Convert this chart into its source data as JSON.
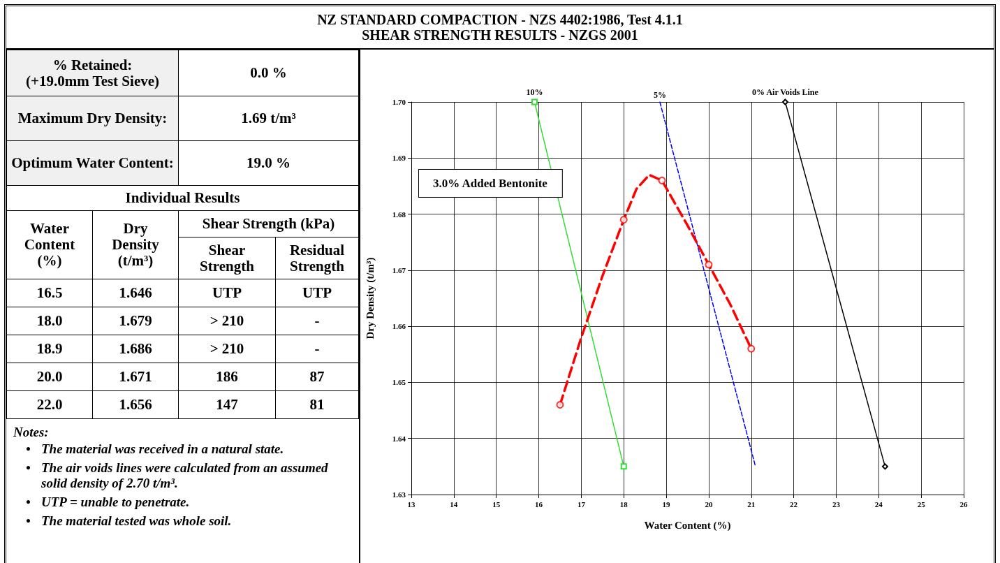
{
  "chart_data": [
    {
      "type": "other",
      "title": "NZ STANDARD COMPACTION - NZS 4402:1986, Test 4.1.1\nSHEAR STRENGTH RESULTS - NZGS 2001",
      "annotations": [
        "% Retained:\n(+19.0mm Test Sieve)",
        "0.0 %",
        "Maximum Dry Density:",
        "1.69 t/m³",
        "Optimum Water Content:",
        "19.0 %",
        "Individual Results",
        "Water\nContent\n(%)",
        "Dry\nDensity\n(t/m³)",
        "Shear Strength (kPa)",
        "Shear\nStrength",
        "Residual\nStrength",
        "16.5",
        "1.646",
        "UTP",
        "UTP",
        "18.0",
        "1.679",
        "> 210",
        "-",
        "18.9",
        "1.686",
        "> 210",
        "-",
        "20.0",
        "1.671",
        "186",
        "87",
        "22.0",
        "1.656",
        "147",
        "81",
        "Notes:",
        "•\tThe material was received in a natural state.",
        "•\tThe air voids lines were calculated from an assumed solid density of 2.70 t/m³.",
        "•\tUTP = unable to penetrate.",
        "•\tThe material tested was whole soil."
      ]
    },
    {
      "type": "line",
      "xlabel": "Water Content (%)",
      "ylabel": "Dry Density (t/m³)",
      "xlim": [
        13,
        26
      ],
      "xticks": [
        13,
        14,
        15,
        16,
        17,
        18,
        19,
        20,
        21,
        22,
        23,
        24,
        25,
        26
      ],
      "ylim": [
        1.63,
        1.7
      ],
      "yticks": [
        1.63,
        1.64,
        1.65,
        1.66,
        1.67,
        1.68,
        1.69,
        {
          "value": 1.7,
          "label": "1.70"
        }
      ],
      "grid": true,
      "legend": false,
      "annotations": [
        "3.0% Added Bentonite"
      ],
      "series": [
        {
          "name": "10%",
          "color": "#33dd33",
          "marker": "square",
          "line_style": "solid",
          "x": [
            15.9,
            18.0
          ],
          "values": [
            1.7,
            1.635
          ]
        },
        {
          "name": "5%",
          "color": "#0000ff",
          "marker": "none",
          "line_style": "dashed",
          "x": [
            18.85,
            21.1
          ],
          "values": [
            1.7,
            1.635
          ]
        },
        {
          "name": "0% Air Voids Line",
          "color": "#000000",
          "marker": "diamond",
          "line_style": "solid",
          "x": [
            21.8,
            24.15
          ],
          "values": [
            1.7,
            1.635
          ]
        },
        {
          "type": "line",
          "color": "#ff0000",
          "marker": "none",
          "line_style": "dashed",
          "x": [
            16.5,
            17.0,
            17.5,
            18.0,
            18.3,
            18.6,
            18.9,
            19.5,
            20.0,
            20.5,
            21.0
          ],
          "values": [
            1.646,
            1.658,
            1.669,
            1.679,
            1.6845,
            1.687,
            1.686,
            1.678,
            1.671,
            1.664,
            1.656
          ]
        },
        {
          "type": "scatter",
          "color": "#ff0000",
          "marker": "circle",
          "x": [
            16.5,
            18.0,
            18.9,
            20.0,
            21.0
          ],
          "values": [
            1.646,
            1.679,
            1.686,
            1.671,
            1.656
          ]
        }
      ]
    }
  ]
}
